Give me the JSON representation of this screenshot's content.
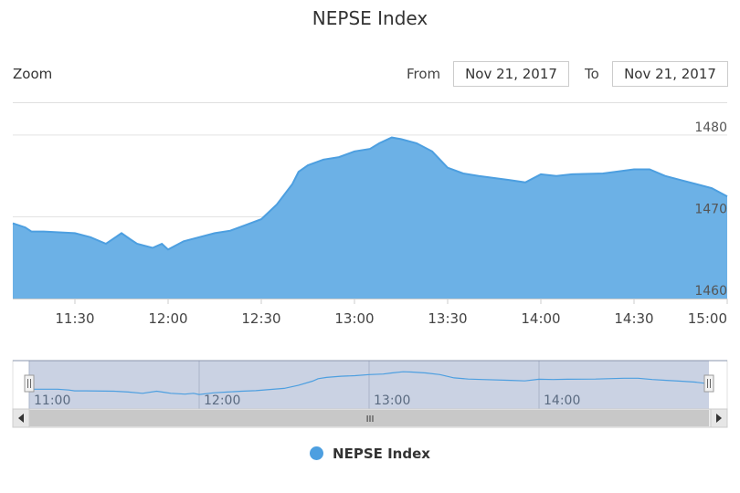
{
  "header": {
    "title": "NEPSE Index",
    "zoom_label": "Zoom",
    "from_label": "From",
    "from_value": "Nov 21, 2017",
    "to_label": "To",
    "to_value": "Nov 21, 2017"
  },
  "legend": {
    "label": "NEPSE Index"
  },
  "navigator": {
    "scrollbar_grip": "III",
    "x_ticks": [
      "11:00",
      "12:00",
      "13:00",
      "14:00"
    ]
  },
  "colors": {
    "series": "#4d9fe0",
    "fill": "#6cb1e6",
    "navigator_mask": "#c4cde0",
    "navigator_line": "#4d9fe0"
  },
  "chart_data": {
    "type": "area",
    "title": "NEPSE Index",
    "xlabel": "",
    "ylabel": "",
    "x_range": [
      "11:10",
      "15:00"
    ],
    "ylim": [
      1460,
      1482
    ],
    "x_ticks": [
      "11:30",
      "12:00",
      "12:30",
      "13:00",
      "13:30",
      "14:00",
      "14:30",
      "15:00"
    ],
    "y_ticks": [
      1460,
      1470,
      1480
    ],
    "y_axis_side": "right",
    "grid": true,
    "legend": "bottom",
    "series": [
      {
        "name": "NEPSE Index",
        "x": [
          "11:10",
          "11:14",
          "11:16",
          "11:20",
          "11:30",
          "11:35",
          "11:40",
          "11:45",
          "11:48",
          "11:50",
          "11:55",
          "11:58",
          "12:00",
          "12:05",
          "12:10",
          "12:15",
          "12:20",
          "12:25",
          "12:30",
          "12:35",
          "12:40",
          "12:42",
          "12:45",
          "12:50",
          "12:55",
          "13:00",
          "13:05",
          "13:08",
          "13:12",
          "13:15",
          "13:20",
          "13:25",
          "13:30",
          "13:35",
          "13:40",
          "13:50",
          "13:55",
          "14:00",
          "14:05",
          "14:10",
          "14:20",
          "14:30",
          "14:35",
          "14:40",
          "14:45",
          "14:50",
          "14:55",
          "15:00"
        ],
        "values": [
          1469.2,
          1468.7,
          1468.2,
          1468.2,
          1468.0,
          1467.5,
          1466.7,
          1468.0,
          1467.2,
          1466.7,
          1466.2,
          1466.7,
          1466.0,
          1467.0,
          1467.5,
          1468.0,
          1468.3,
          1469.0,
          1469.7,
          1471.5,
          1474.0,
          1475.5,
          1476.3,
          1477.0,
          1477.3,
          1478.0,
          1478.3,
          1479.0,
          1479.7,
          1479.5,
          1479.0,
          1478.0,
          1476.0,
          1475.3,
          1475.0,
          1474.5,
          1474.2,
          1475.2,
          1475.0,
          1475.2,
          1475.3,
          1475.8,
          1475.8,
          1475.0,
          1474.5,
          1474.0,
          1473.5,
          1472.5
        ]
      }
    ]
  }
}
